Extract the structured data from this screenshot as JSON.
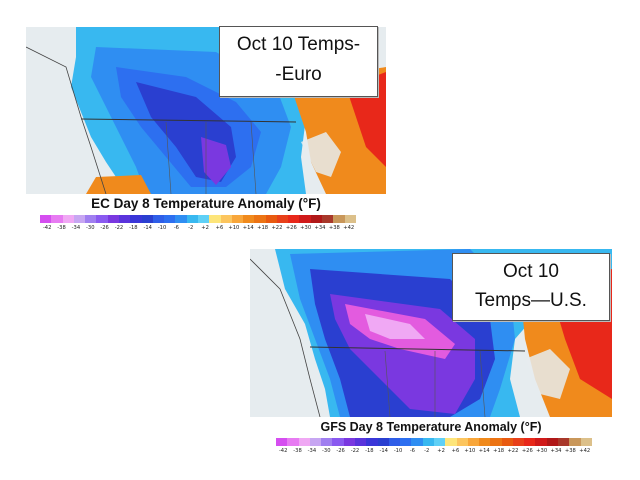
{
  "colors": {
    "land_gray": "#e6ecef",
    "ocean": "#dfe6ea",
    "warm_orange": "#f08a1c",
    "warm_red": "#e8281a",
    "cool_lightblue": "#38b8f0",
    "cool_blue": "#2d6ff0",
    "cool_navy": "#2a3fd0",
    "cool_purple": "#7a38e0",
    "cool_magenta": "#e35bdf"
  },
  "color_scale": [
    "#d54ef0",
    "#e77bf2",
    "#f0a8f4",
    "#c7a6f2",
    "#a07ff0",
    "#8a5af0",
    "#7a38e0",
    "#5a34dc",
    "#3a36d8",
    "#2a3fd0",
    "#2f5ee8",
    "#2d6ff0",
    "#2f8ef2",
    "#38b8f0",
    "#5fd0f6",
    "#fde57a",
    "#fcc55e",
    "#f8a63a",
    "#f08a1c",
    "#ec7414",
    "#e85a10",
    "#e8401a",
    "#e8281a",
    "#d01a1a",
    "#b01818",
    "#a8382a",
    "#c9975a",
    "#dcc08a"
  ],
  "ec": {
    "title": "EC Day 8 Temperature Anomaly (°F)",
    "label_line1": "Oct 10 Temps-",
    "label_line2": "-Euro",
    "scale_labels": [
      "-42",
      "-38",
      "-34",
      "-30",
      "-26",
      "-22",
      "-18",
      "-14",
      "-10",
      "-6",
      "-2",
      "+2",
      "+6",
      "+10",
      "+14",
      "+18",
      "+22",
      "+26",
      "+30",
      "+34",
      "+38",
      "+42"
    ]
  },
  "gfs": {
    "title": "GFS Day 8 Temperature Anomaly (°F)",
    "label_line1": "Oct 10",
    "label_line2": "Temps—U.S.",
    "scale_labels": [
      "-42",
      "-38",
      "-34",
      "-30",
      "-26",
      "-22",
      "-18",
      "-14",
      "-10",
      "-6",
      "-2",
      "+2",
      "+6",
      "+10",
      "+14",
      "+18",
      "+22",
      "+26",
      "+30",
      "+34",
      "+38",
      "+42"
    ]
  }
}
